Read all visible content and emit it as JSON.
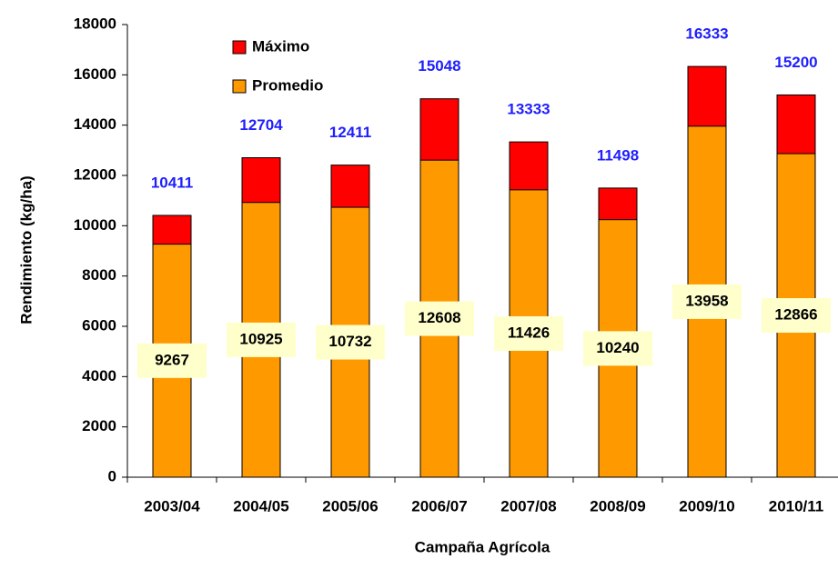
{
  "chart_data": {
    "type": "bar",
    "mode": "overlay",
    "y_label": "Rendimiento (kg/ha)",
    "x_label": "Campaña Agrícola",
    "categories": [
      "2003/04",
      "2004/05",
      "2005/06",
      "2006/07",
      "2007/08",
      "2008/09",
      "2009/10",
      "2010/11"
    ],
    "series": [
      {
        "name": "Máximo",
        "color": "#ff0000",
        "label_color": "#1f1fff",
        "values": [
          10411,
          12704,
          12411,
          15048,
          13333,
          11498,
          16333,
          15200
        ]
      },
      {
        "name": "Promedio",
        "color": "#ff9900",
        "label_color": "#000000",
        "values": [
          9267,
          10925,
          10732,
          12608,
          11426,
          10240,
          13958,
          12866
        ]
      }
    ],
    "ylim": [
      0,
      18000
    ],
    "yticks": [
      0,
      2000,
      4000,
      6000,
      8000,
      10000,
      12000,
      14000,
      16000,
      18000
    ],
    "legend": "top-left"
  }
}
